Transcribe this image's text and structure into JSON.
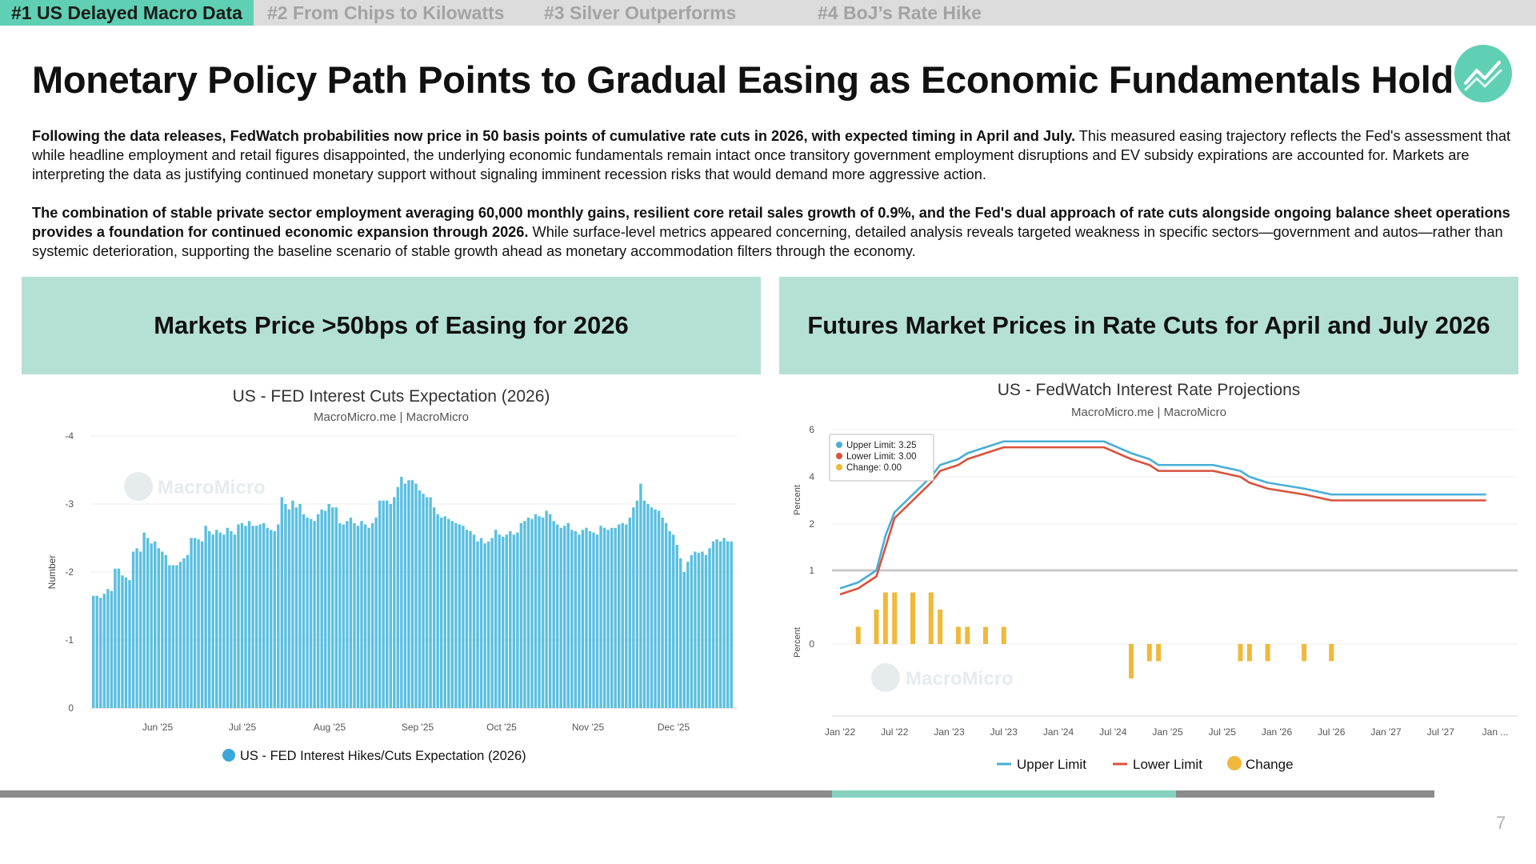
{
  "tabs": [
    {
      "label": "#1 US Delayed Macro Data",
      "active": true
    },
    {
      "label": "#2 From Chips to Kilowatts",
      "active": false
    },
    {
      "label": "#3 Silver Outperforms",
      "active": false
    },
    {
      "label": "#4 BoJ’s Rate Hike",
      "active": false
    }
  ],
  "header": {
    "title": "Monetary Policy Path Points to Gradual Easing as Economic Fundamentals Hold",
    "logo_icon": "chart-trend-icon"
  },
  "body": {
    "p1_bold": "Following the data releases, FedWatch probabilities now price in 50 basis points of cumulative rate cuts in 2026, with expected timing in April and July.",
    "p1_text": " This measured easing trajectory reflects the Fed's assessment that while headline employment and retail figures disappointed, the underlying economic fundamentals remain intact once transitory government employment disruptions and EV subsidy expirations are accounted for. Markets are interpreting the data as justifying continued monetary support without signaling imminent recession risks that would demand more aggressive action.",
    "p2_bold": "The combination of stable private sector employment averaging 60,000 monthly gains, resilient core retail sales growth of 0.9%, and the Fed's dual approach of rate cuts alongside ongoing balance sheet operations provides a foundation for continued economic expansion through 2026.",
    "p2_text": " While surface-level metrics appeared concerning, detailed analysis reveals targeted weakness in specific sectors—government and autos—rather than systemic deterioration, supporting the baseline scenario of stable growth ahead as monetary accommodation filters through the economy."
  },
  "panels": {
    "left_title": "Markets Price >50bps of Easing for 2026",
    "right_title": "Futures Market Prices in Rate Cuts for April and July 2026"
  },
  "footer": {
    "page_number": "7",
    "progress": 0.82,
    "progress_start": 0.58
  },
  "colors": {
    "accent": "#5fd0b3",
    "panel_header": "#b5e0d5",
    "bar_blue": "#5bbfe0",
    "upper_limit": "#4aaed6",
    "lower_limit": "#d9533c",
    "change": "#f0b93a"
  },
  "chart_data": [
    {
      "type": "bar",
      "title": "US - FED Interest Cuts Expectation (2026)",
      "subtitle": "MacroMicro.me | MacroMicro",
      "watermark": "MacroMicro",
      "ylabel": "Number",
      "ylim": [
        0,
        -4
      ],
      "y_ticks": [
        "-4",
        "-3",
        "-2",
        "-1",
        "0"
      ],
      "x_ticks": [
        "Jun '25",
        "Jul '25",
        "Aug '25",
        "Sep '25",
        "Oct '25",
        "Nov '25",
        "Dec '25"
      ],
      "legend": "top-none / bottom-center",
      "series": [
        {
          "name": "US - FED Interest Hikes/Cuts Expectation (2026)",
          "values": [
            -1.65,
            -1.65,
            -1.62,
            -1.68,
            -1.75,
            -1.72,
            -2.05,
            -2.05,
            -1.95,
            -1.92,
            -1.88,
            -2.3,
            -2.35,
            -2.3,
            -2.58,
            -2.5,
            -2.42,
            -2.45,
            -2.35,
            -2.3,
            -2.25,
            -2.1,
            -2.1,
            -2.1,
            -2.15,
            -2.2,
            -2.25,
            -2.5,
            -2.5,
            -2.48,
            -2.45,
            -2.68,
            -2.6,
            -2.55,
            -2.62,
            -2.58,
            -2.55,
            -2.65,
            -2.6,
            -2.55,
            -2.7,
            -2.72,
            -2.68,
            -2.75,
            -2.68,
            -2.68,
            -2.7,
            -2.72,
            -2.65,
            -2.62,
            -2.6,
            -2.7,
            -3.1,
            -3.0,
            -2.92,
            -3.05,
            -2.95,
            -3.0,
            -2.85,
            -2.8,
            -2.78,
            -2.75,
            -2.85,
            -2.92,
            -2.9,
            -3.0,
            -2.95,
            -2.95,
            -2.72,
            -2.7,
            -2.75,
            -2.8,
            -2.72,
            -2.68,
            -2.75,
            -2.7,
            -2.65,
            -2.72,
            -2.8,
            -3.05,
            -3.05,
            -3.05,
            -3.0,
            -3.1,
            -3.25,
            -3.4,
            -3.3,
            -3.35,
            -3.35,
            -3.3,
            -3.2,
            -3.15,
            -3.1,
            -3.1,
            -2.95,
            -2.85,
            -2.8,
            -2.82,
            -2.78,
            -2.75,
            -2.72,
            -2.7,
            -2.68,
            -2.62,
            -2.6,
            -2.55,
            -2.45,
            -2.5,
            -2.42,
            -2.45,
            -2.5,
            -2.62,
            -2.55,
            -2.52,
            -2.55,
            -2.6,
            -2.55,
            -2.58,
            -2.72,
            -2.75,
            -2.8,
            -2.78,
            -2.85,
            -2.82,
            -2.8,
            -2.9,
            -2.85,
            -2.75,
            -2.7,
            -2.65,
            -2.68,
            -2.72,
            -2.62,
            -2.6,
            -2.55,
            -2.62,
            -2.65,
            -2.6,
            -2.58,
            -2.55,
            -2.68,
            -2.65,
            -2.62,
            -2.65,
            -2.65,
            -2.7,
            -2.72,
            -2.7,
            -2.8,
            -2.95,
            -3.05,
            -3.3,
            -3.05,
            -3.0,
            -2.95,
            -2.92,
            -2.9,
            -2.8,
            -2.72,
            -2.6,
            -2.55,
            -2.4,
            -2.2,
            -2.0,
            -2.15,
            -2.25,
            -2.3,
            -2.28,
            -2.3,
            -2.25,
            -2.35,
            -2.45,
            -2.48,
            -2.45,
            -2.5,
            -2.45,
            -2.45
          ]
        }
      ]
    },
    {
      "type": "line",
      "title": "US - FedWatch Interest Rate Projections",
      "subtitle": "MacroMicro.me | MacroMicro",
      "watermark": "MacroMicro",
      "ylabel": "Percent",
      "upper_ylim": [
        1,
        6
      ],
      "upper_y_ticks": [
        "6",
        "4",
        "2",
        "1"
      ],
      "lower_y_ticks": [
        "0"
      ],
      "x_ticks": [
        "Jan '22",
        "Jul '22",
        "Jan '23",
        "Jul '23",
        "Jan '24",
        "Jul '24",
        "Jan '25",
        "Jul '25",
        "Jan '26",
        "Jul '26",
        "Jan '27",
        "Jul '27",
        "Jan ..."
      ],
      "tooltip": [
        "Upper Limit: 3.25",
        "Lower Limit: 3.00",
        "Change: 0.00"
      ],
      "legend": [
        "Upper Limit",
        "Lower Limit",
        "Change"
      ],
      "series": [
        {
          "name": "Upper Limit",
          "x": [
            "2022-01",
            "2022-03",
            "2022-05",
            "2022-06",
            "2022-07",
            "2022-09",
            "2022-11",
            "2022-12",
            "2023-02",
            "2023-03",
            "2023-05",
            "2023-07",
            "2023-12",
            "2024-06",
            "2024-09",
            "2024-11",
            "2024-12",
            "2025-06",
            "2025-09",
            "2025-10",
            "2025-12",
            "2026-04",
            "2026-07",
            "2027-12"
          ],
          "values": [
            0.25,
            0.5,
            1.0,
            1.75,
            2.5,
            3.25,
            4.0,
            4.5,
            4.75,
            5.0,
            5.25,
            5.5,
            5.5,
            5.5,
            5.0,
            4.75,
            4.5,
            4.5,
            4.25,
            4.0,
            3.75,
            3.5,
            3.25,
            3.25
          ]
        },
        {
          "name": "Lower Limit",
          "x": [
            "2022-01",
            "2022-03",
            "2022-05",
            "2022-06",
            "2022-07",
            "2022-09",
            "2022-11",
            "2022-12",
            "2023-02",
            "2023-03",
            "2023-05",
            "2023-07",
            "2023-12",
            "2024-06",
            "2024-09",
            "2024-11",
            "2024-12",
            "2025-06",
            "2025-09",
            "2025-10",
            "2025-12",
            "2026-04",
            "2026-07",
            "2027-12"
          ],
          "values": [
            0.0,
            0.25,
            0.75,
            1.5,
            2.25,
            3.0,
            3.75,
            4.25,
            4.5,
            4.75,
            5.0,
            5.25,
            5.25,
            5.25,
            4.75,
            4.5,
            4.25,
            4.25,
            4.0,
            3.75,
            3.5,
            3.25,
            3.0,
            3.0
          ]
        },
        {
          "name": "Change",
          "x": [
            "2022-03",
            "2022-05",
            "2022-06",
            "2022-07",
            "2022-09",
            "2022-11",
            "2022-12",
            "2023-02",
            "2023-03",
            "2023-05",
            "2023-07",
            "2024-09",
            "2024-11",
            "2024-12",
            "2025-09",
            "2025-10",
            "2025-12",
            "2026-04",
            "2026-07"
          ],
          "values": [
            0.25,
            0.5,
            0.75,
            0.75,
            0.75,
            0.75,
            0.5,
            0.25,
            0.25,
            0.25,
            0.25,
            -0.5,
            -0.25,
            -0.25,
            -0.25,
            -0.25,
            -0.25,
            -0.25,
            -0.25
          ]
        }
      ]
    }
  ]
}
